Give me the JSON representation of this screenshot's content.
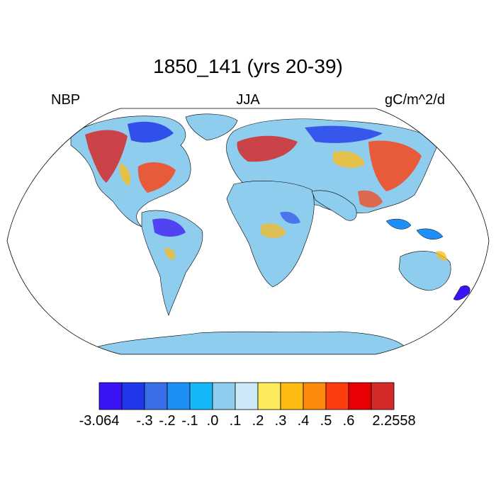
{
  "map": {
    "title": "1850_141 (yrs 20-39)",
    "left_label": "NBP",
    "center_label": "JJA",
    "right_label": "gC/m^2/d",
    "projection": "Robinson",
    "ocean_color": "#ffffff",
    "land_outline_color": "#000000"
  },
  "colorbar": {
    "colors": [
      "#3a14f5",
      "#2038ea",
      "#3a6ee8",
      "#1e8ff6",
      "#14b8f7",
      "#8fcdee",
      "#cde8f6",
      "#fee95a",
      "#fdbb13",
      "#fd8a0a",
      "#fd3d0d",
      "#e80005",
      "#d42a2a"
    ],
    "labels": [
      "-3.064",
      "-.3",
      "-.2",
      "-.1",
      ".0",
      ".1",
      ".2",
      ".3",
      ".4",
      ".5",
      ".6",
      "2.2558"
    ]
  }
}
